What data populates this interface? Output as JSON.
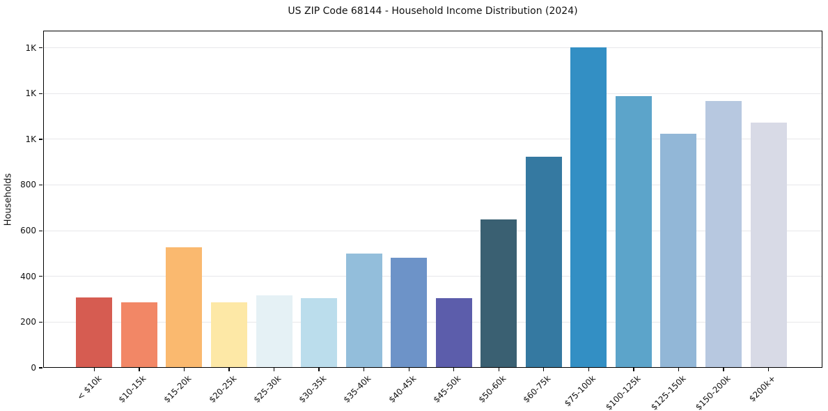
{
  "chart_data": {
    "type": "bar",
    "title": "US ZIP Code 68144 - Household Income Distribution (2024)",
    "xlabel": "",
    "ylabel": "Households",
    "categories": [
      "< $10k",
      "$10-15k",
      "$15-20k",
      "$20-25k",
      "$25-30k",
      "$30-35k",
      "$35-40k",
      "$40-45k",
      "$45-50k",
      "$50-60k",
      "$60-75k",
      "$75-100k",
      "$100-125k",
      "$125-150k",
      "$150-200k",
      "$200k+"
    ],
    "values": [
      308,
      286,
      528,
      286,
      318,
      304,
      500,
      482,
      306,
      650,
      922,
      1402,
      1188,
      1025,
      1168,
      1072
    ],
    "bar_colors": [
      "#d65c51",
      "#f28766",
      "#fab96f",
      "#fde8a6",
      "#e5f1f5",
      "#bbddec",
      "#93bedb",
      "#6d93c8",
      "#5c5dab",
      "#3a6072",
      "#3579a1",
      "#338fc4",
      "#5ca4ca",
      "#92b7d7",
      "#b7c8e0",
      "#d8dae6"
    ],
    "yticks": [
      {
        "value": 0,
        "label": "0"
      },
      {
        "value": 200,
        "label": "200"
      },
      {
        "value": 400,
        "label": "400"
      },
      {
        "value": 600,
        "label": "600"
      },
      {
        "value": 800,
        "label": "800"
      },
      {
        "value": 1000,
        "label": "1K"
      },
      {
        "value": 1200,
        "label": "1K"
      },
      {
        "value": 1400,
        "label": "1K"
      }
    ],
    "ylim": [
      0,
      1475
    ],
    "grid": true,
    "grid_color": "#e7e7ea",
    "spine_color": "#000000",
    "background_color": "#ffffff",
    "text_color": "#111111",
    "legend": "none"
  }
}
